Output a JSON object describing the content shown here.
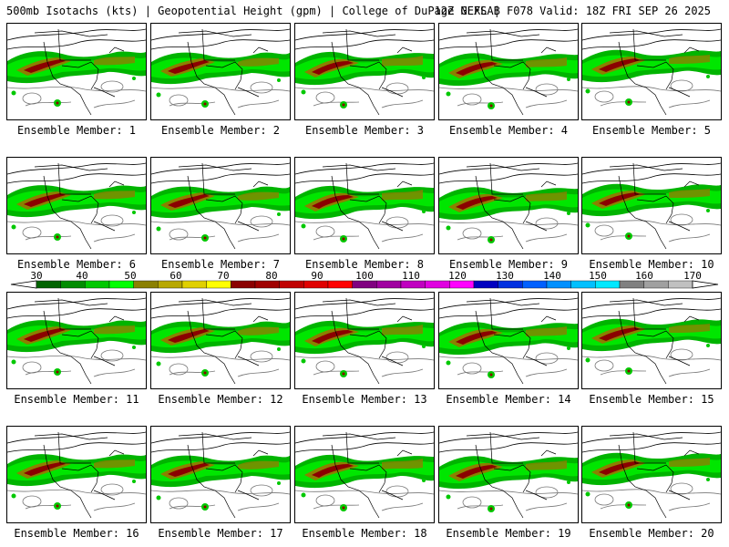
{
  "header": {
    "left": "500mb Isotachs (kts) | Geopotential Height (gpm) | College of DuPage NEXLAB",
    "right": "12Z GEFS | F078 Valid: 18Z FRI SEP 26 2025"
  },
  "members": [
    {
      "label": "Ensemble Member: 1"
    },
    {
      "label": "Ensemble Member: 2"
    },
    {
      "label": "Ensemble Member: 3"
    },
    {
      "label": "Ensemble Member: 4"
    },
    {
      "label": "Ensemble Member: 5"
    },
    {
      "label": "Ensemble Member: 6"
    },
    {
      "label": "Ensemble Member: 7"
    },
    {
      "label": "Ensemble Member: 8"
    },
    {
      "label": "Ensemble Member: 9"
    },
    {
      "label": "Ensemble Member: 10"
    },
    {
      "label": "Ensemble Member: 11"
    },
    {
      "label": "Ensemble Member: 12"
    },
    {
      "label": "Ensemble Member: 13"
    },
    {
      "label": "Ensemble Member: 14"
    },
    {
      "label": "Ensemble Member: 15"
    },
    {
      "label": "Ensemble Member: 16"
    },
    {
      "label": "Ensemble Member: 17"
    },
    {
      "label": "Ensemble Member: 18"
    },
    {
      "label": "Ensemble Member: 19"
    },
    {
      "label": "Ensemble Member: 20"
    }
  ],
  "colorbar": {
    "labels": [
      "30",
      "40",
      "50",
      "60",
      "70",
      "80",
      "90",
      "100",
      "110",
      "120",
      "130",
      "140",
      "150",
      "160",
      "170"
    ],
    "colors": [
      "#006400",
      "#008c00",
      "#00c800",
      "#00ff00",
      "#8b8000",
      "#b8a800",
      "#e0d000",
      "#ffff00",
      "#8b0000",
      "#a00000",
      "#c00000",
      "#e00000",
      "#ff0000",
      "#800080",
      "#a000a0",
      "#c000c0",
      "#e000e0",
      "#ff00ff",
      "#0000c0",
      "#0030e0",
      "#0060ff",
      "#0090ff",
      "#00c0ff",
      "#00e8ff",
      "#808080",
      "#a0a0a0",
      "#c0c0c0"
    ]
  }
}
